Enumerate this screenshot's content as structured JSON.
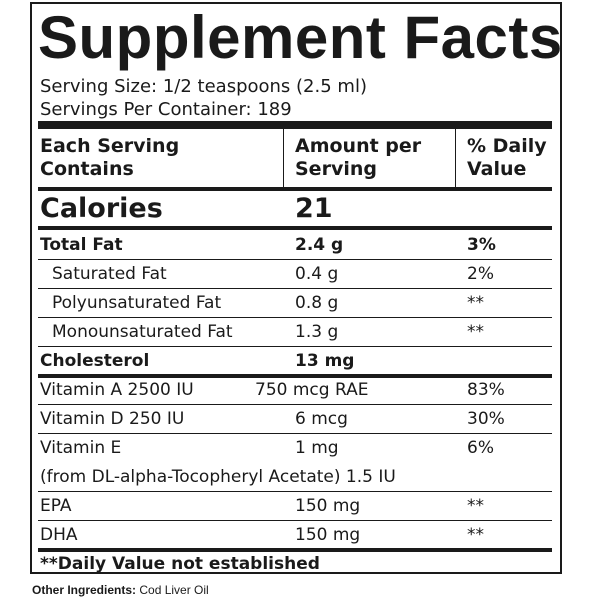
{
  "title": "Supplement Facts",
  "serving_size": "Serving Size: 1/2 teaspoons (2.5 ml)",
  "servings_per_container": "Servings Per Container: 189",
  "table": {
    "header": [
      [
        "Each Serving",
        "Contains"
      ],
      [
        "Amount per",
        "Serving"
      ],
      [
        "% Daily",
        "Value"
      ]
    ],
    "calories": {
      "name": "Calories",
      "amount": "21"
    },
    "rows": [
      {
        "name": "Total Fat",
        "amount": "2.4 g",
        "dv": "3%",
        "bold": true
      },
      {
        "name": "Saturated Fat",
        "amount": "0.4 g",
        "dv": "2%",
        "indent": true
      },
      {
        "name": "Polyunsaturated Fat",
        "amount": "0.8 g",
        "dv": "**",
        "indent": true
      },
      {
        "name": "Monounsaturated Fat",
        "amount": "1.3 g",
        "dv": "**",
        "indent": true
      },
      {
        "name": "Cholesterol",
        "amount": "13 mg",
        "bold": true
      },
      {
        "name": "Vitamin A 2500 IU",
        "amount": "750 mcg RAE",
        "dv": "83%"
      },
      {
        "name": "Vitamin D 250 IU",
        "amount": "6 mcg",
        "dv": "30%"
      },
      {
        "name": "Vitamin E",
        "amount": "1 mg",
        "dv": "6%",
        "note": "(from DL-alpha-Tocopheryl Acetate) 1.5 IU"
      },
      {
        "name": "EPA",
        "amount": "150 mg",
        "dv": "**"
      },
      {
        "name": "DHA",
        "amount": "150 mg",
        "dv": "**"
      }
    ]
  },
  "footnote": "**Daily Value not established",
  "other_ingredients": {
    "label": "Other Ingredients:",
    "text": "Cod Liver Oil"
  }
}
